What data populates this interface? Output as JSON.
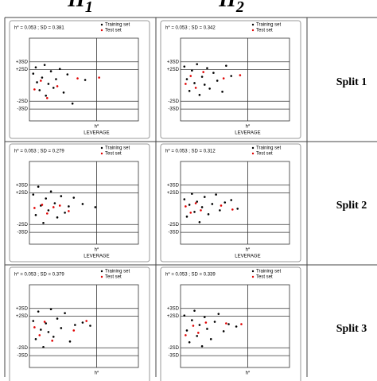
{
  "column_headers": [
    {
      "text": "H",
      "sub": "1"
    },
    {
      "text": "H",
      "sub": "2"
    }
  ],
  "row_labels": [
    "Split 1",
    "Split 2",
    "Split 3"
  ],
  "chart_data": [
    {
      "type": "scatter",
      "annotation": "h* = 0.053 ; SD = 0.381",
      "xlabel": "LEVERAGE",
      "xlim": [
        0,
        0.086
      ],
      "xticks": [
        {
          "value": 0.053,
          "label": "h*"
        }
      ],
      "ylim": [
        -4.5,
        6
      ],
      "yticks": [
        {
          "value": 3,
          "label": "+3SD"
        },
        {
          "value": 2,
          "label": "+2SD"
        },
        {
          "value": -2,
          "label": "-2SD"
        },
        {
          "value": -3,
          "label": "-3SD"
        }
      ],
      "series": [
        {
          "name": "Training set",
          "color": "#000000",
          "x": [
            0.003,
            0.005,
            0.006,
            0.008,
            0.01,
            0.012,
            0.013,
            0.015,
            0.017,
            0.019,
            0.021,
            0.024,
            0.027,
            0.03,
            0.034,
            0.044
          ],
          "values": [
            1.5,
            2.3,
            0.4,
            -0.6,
            1.0,
            2.6,
            -1.3,
            0.2,
            1.8,
            -0.3,
            0.8,
            2.1,
            -0.9,
            1.4,
            -2.3,
            0.7
          ]
        },
        {
          "name": "Test set",
          "color": "#e00000",
          "x": [
            0.004,
            0.009,
            0.014,
            0.022,
            0.038,
            0.055
          ],
          "values": [
            -0.5,
            0.6,
            -1.6,
            -0.1,
            0.9,
            1.0
          ]
        }
      ]
    },
    {
      "type": "scatter",
      "annotation": "h* = 0.053 ; SD = 0.342",
      "xlabel": "LEVERAGE",
      "xlim": [
        0,
        0.086
      ],
      "xticks": [
        {
          "value": 0.053,
          "label": "h*"
        }
      ],
      "ylim": [
        -4.5,
        6
      ],
      "yticks": [
        {
          "value": 3,
          "label": "+3SD"
        },
        {
          "value": 2,
          "label": "+2SD"
        },
        {
          "value": -2,
          "label": "-2SD"
        },
        {
          "value": -3,
          "label": "-3SD"
        }
      ],
      "series": [
        {
          "name": "Training set",
          "color": "#000000",
          "x": [
            0.003,
            0.005,
            0.007,
            0.009,
            0.011,
            0.013,
            0.015,
            0.017,
            0.019,
            0.021,
            0.023,
            0.026,
            0.029,
            0.033,
            0.036,
            0.04
          ],
          "values": [
            2.4,
            0.8,
            -0.7,
            1.9,
            0.3,
            2.7,
            -1.2,
            1.1,
            0.1,
            2.2,
            -0.4,
            1.6,
            0.6,
            -0.8,
            2.5,
            1.2
          ]
        },
        {
          "name": "Test set",
          "color": "#e00000",
          "x": [
            0.004,
            0.008,
            0.012,
            0.018,
            0.034,
            0.047
          ],
          "values": [
            0.2,
            1.2,
            -0.3,
            1.7,
            0.9,
            1.3
          ]
        }
      ]
    },
    {
      "type": "scatter",
      "annotation": "h* = 0.053 ; SD = 0.279",
      "xlabel": "LEVERAGE",
      "xlim": [
        0,
        0.086
      ],
      "xticks": [
        {
          "value": 0.053,
          "label": "h*"
        }
      ],
      "ylim": [
        -4.5,
        6
      ],
      "yticks": [
        {
          "value": 3,
          "label": "+3SD"
        },
        {
          "value": 2,
          "label": "+2SD"
        },
        {
          "value": -2,
          "label": "-2SD"
        },
        {
          "value": -3,
          "label": "-3SD"
        }
      ],
      "series": [
        {
          "name": "Training set",
          "color": "#000000",
          "x": [
            0.003,
            0.005,
            0.007,
            0.009,
            0.011,
            0.013,
            0.015,
            0.017,
            0.02,
            0.022,
            0.025,
            0.028,
            0.031,
            0.035,
            0.042,
            0.052
          ],
          "values": [
            1.8,
            -0.8,
            2.8,
            0.4,
            -1.8,
            1.3,
            -0.2,
            2.2,
            0.7,
            -1.1,
            1.6,
            -0.5,
            0.3,
            1.4,
            0.6,
            0.2
          ]
        },
        {
          "name": "Test set",
          "color": "#e00000",
          "x": [
            0.004,
            0.01,
            0.014,
            0.019,
            0.024,
            0.031
          ],
          "values": [
            0.1,
            0.5,
            -0.6,
            0.2,
            0.4,
            -0.3
          ]
        }
      ]
    },
    {
      "type": "scatter",
      "annotation": "h* = 0.053 ; SD = 0.312",
      "xlabel": "LEVERAGE",
      "xlim": [
        0,
        0.086
      ],
      "xticks": [
        {
          "value": 0.053,
          "label": "h*"
        }
      ],
      "ylim": [
        -4.5,
        6
      ],
      "yticks": [
        {
          "value": 3,
          "label": "+3SD"
        },
        {
          "value": 2,
          "label": "+2SD"
        },
        {
          "value": -2,
          "label": "-2SD"
        },
        {
          "value": -3,
          "label": "-3SD"
        }
      ],
      "series": [
        {
          "name": "Training set",
          "color": "#000000",
          "x": [
            0.003,
            0.005,
            0.007,
            0.009,
            0.011,
            0.013,
            0.015,
            0.017,
            0.019,
            0.022,
            0.025,
            0.028,
            0.031,
            0.035,
            0.04,
            0.045
          ],
          "values": [
            1.2,
            -1.0,
            0.5,
            1.9,
            -0.4,
            0.9,
            -1.7,
            0.2,
            1.5,
            -0.7,
            0.6,
            1.8,
            -0.2,
            0.8,
            1.1,
            0.0
          ]
        },
        {
          "name": "Test set",
          "color": "#e00000",
          "x": [
            0.004,
            0.008,
            0.012,
            0.016,
            0.032,
            0.041
          ],
          "values": [
            0.3,
            -0.5,
            0.7,
            -0.2,
            0.4,
            -0.1
          ]
        }
      ]
    },
    {
      "type": "scatter",
      "annotation": "h* = 0.053 ; SD = 0.379",
      "xlim": [
        0,
        0.086
      ],
      "xticks": [
        {
          "value": 0.053,
          "label": "h*"
        }
      ],
      "ylim": [
        -4.5,
        6
      ],
      "yticks": [
        {
          "value": 3,
          "label": "+3SD"
        },
        {
          "value": 2,
          "label": "+2SD"
        },
        {
          "value": -2,
          "label": "-2SD"
        },
        {
          "value": -3,
          "label": "-3SD"
        }
      ],
      "series": [
        {
          "name": "Training set",
          "color": "#000000",
          "x": [
            0.003,
            0.005,
            0.007,
            0.009,
            0.011,
            0.013,
            0.015,
            0.017,
            0.019,
            0.022,
            0.025,
            0.028,
            0.032,
            0.036,
            0.042,
            0.048
          ],
          "values": [
            1.4,
            -0.9,
            2.6,
            0.3,
            -1.9,
            1.1,
            0.0,
            2.9,
            -0.6,
            1.7,
            0.5,
            2.4,
            -1.2,
            0.9,
            1.2,
            0.8
          ]
        },
        {
          "name": "Test set",
          "color": "#e00000",
          "x": [
            0.004,
            0.008,
            0.012,
            0.018,
            0.035,
            0.045
          ],
          "values": [
            0.6,
            -0.4,
            1.3,
            -1.1,
            0.2,
            1.4
          ]
        }
      ]
    },
    {
      "type": "scatter",
      "annotation": "h* = 0.053 ; SD = 0.339",
      "xlim": [
        0,
        0.086
      ],
      "xticks": [
        {
          "value": 0.053,
          "label": "h*"
        }
      ],
      "ylim": [
        -4.5,
        6
      ],
      "yticks": [
        {
          "value": 3,
          "label": "+3SD"
        },
        {
          "value": 2,
          "label": "+2SD"
        },
        {
          "value": -2,
          "label": "-2SD"
        },
        {
          "value": -3,
          "label": "-3SD"
        }
      ],
      "series": [
        {
          "name": "Training set",
          "color": "#000000",
          "x": [
            0.003,
            0.005,
            0.007,
            0.009,
            0.011,
            0.013,
            0.015,
            0.017,
            0.019,
            0.021,
            0.024,
            0.027,
            0.03,
            0.034,
            0.038,
            0.044
          ],
          "values": [
            2.1,
            0.2,
            -1.3,
            1.5,
            2.7,
            -0.5,
            0.9,
            -1.8,
            1.9,
            0.4,
            -0.9,
            1.3,
            2.3,
            0.1,
            1.0,
            0.7
          ]
        },
        {
          "name": "Test set",
          "color": "#e00000",
          "x": [
            0.004,
            0.01,
            0.014,
            0.02,
            0.036,
            0.048
          ],
          "values": [
            -0.4,
            0.8,
            -0.1,
            1.2,
            1.1,
            1.0
          ]
        }
      ]
    }
  ]
}
